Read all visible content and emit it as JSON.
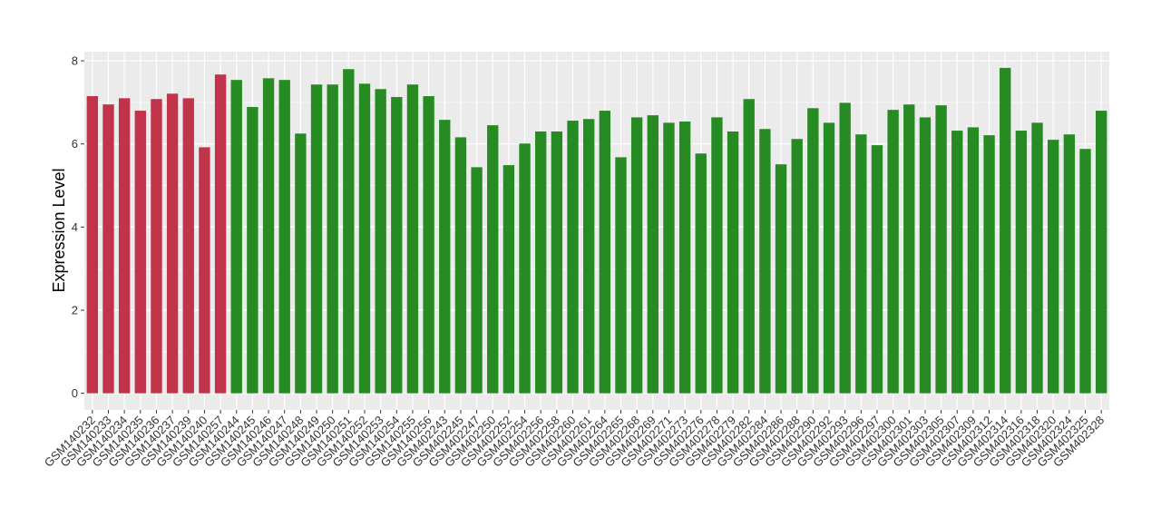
{
  "chart_data": {
    "type": "bar",
    "title": "",
    "xlabel": "",
    "ylabel": "Expression Level",
    "ylim": [
      -0.4,
      8.22
    ],
    "yticks": [
      0,
      2,
      4,
      6,
      8
    ],
    "grid": true,
    "legend": "none",
    "colors": {
      "group1": "#C0334A",
      "group2": "#268B22",
      "panel": "#EBEBEB",
      "grid": "#FFFFFF"
    },
    "categories": [
      "GSM140232",
      "GSM140233",
      "GSM140234",
      "GSM140235",
      "GSM140236",
      "GSM140237",
      "GSM140239",
      "GSM140240",
      "GSM140257",
      "GSM140244",
      "GSM140245",
      "GSM140246",
      "GSM140247",
      "GSM140248",
      "GSM140249",
      "GSM140250",
      "GSM140251",
      "GSM140252",
      "GSM140253",
      "GSM140254",
      "GSM140255",
      "GSM140256",
      "GSM402243",
      "GSM402245",
      "GSM402247",
      "GSM402250",
      "GSM402252",
      "GSM402254",
      "GSM402256",
      "GSM402258",
      "GSM402260",
      "GSM402261",
      "GSM402264",
      "GSM402265",
      "GSM402268",
      "GSM402269",
      "GSM402271",
      "GSM402273",
      "GSM402276",
      "GSM402278",
      "GSM402279",
      "GSM402282",
      "GSM402284",
      "GSM402286",
      "GSM402288",
      "GSM402290",
      "GSM402292",
      "GSM402293",
      "GSM402296",
      "GSM402297",
      "GSM402300",
      "GSM402301",
      "GSM402303",
      "GSM402305",
      "GSM402307",
      "GSM402309",
      "GSM402312",
      "GSM402314",
      "GSM402316",
      "GSM402318",
      "GSM402320",
      "GSM402324",
      "GSM402325",
      "GSM402328"
    ],
    "values": [
      7.15,
      6.95,
      7.1,
      6.8,
      7.08,
      7.21,
      7.1,
      5.92,
      7.67,
      7.54,
      6.89,
      7.58,
      7.54,
      6.25,
      7.43,
      7.43,
      7.8,
      7.45,
      7.32,
      7.13,
      7.43,
      7.15,
      6.58,
      6.16,
      5.44,
      6.45,
      5.49,
      6.01,
      6.3,
      6.3,
      6.56,
      6.6,
      6.8,
      5.68,
      6.64,
      6.69,
      6.51,
      6.54,
      5.77,
      6.64,
      6.3,
      7.08,
      6.36,
      5.51,
      6.12,
      6.86,
      6.51,
      6.99,
      6.23,
      5.97,
      6.82,
      6.95,
      6.64,
      6.93,
      6.32,
      6.4,
      6.21,
      7.83,
      6.32,
      6.51,
      6.1,
      6.23,
      5.88,
      6.8
    ],
    "group_count_first": 9
  }
}
